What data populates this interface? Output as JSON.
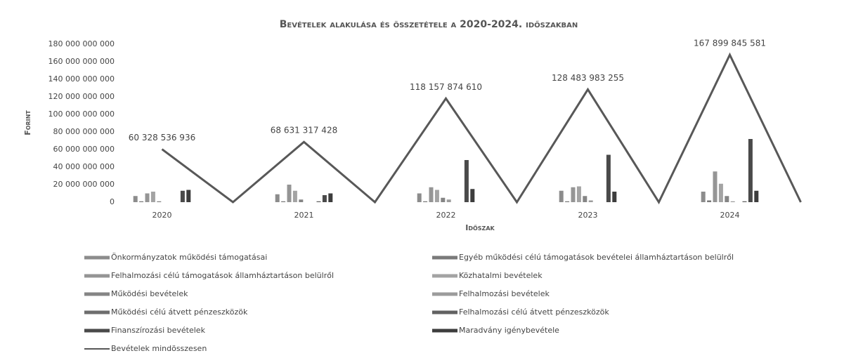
{
  "chart_data": {
    "type": "bar_line",
    "title": "Bevételek alakulása és összetétele a 2020-2024. időszakban",
    "y_label": "Forint",
    "x_label": "Időszak",
    "categories": [
      "2020",
      null,
      "2021",
      null,
      "2022",
      null,
      "2023",
      null,
      "2024",
      null
    ],
    "ylim": [
      0,
      180000000000
    ],
    "yticks": [
      0,
      {
        "value": 20000000000,
        "label": "20 000 000 000"
      },
      {
        "value": 40000000000,
        "label": "40 000 000 000"
      },
      {
        "value": 60000000000,
        "label": "60 000 000 000"
      },
      {
        "value": 80000000000,
        "label": "80 000 000 000"
      },
      {
        "value": 100000000000,
        "label": "100 000 000 000"
      },
      {
        "value": 120000000000,
        "label": "120 000 000 000"
      },
      {
        "value": 140000000000,
        "label": "140 000 000 000"
      },
      {
        "value": 160000000000,
        "label": "160 000 000 000"
      },
      {
        "value": 180000000000,
        "label": "180 000 000 000"
      }
    ],
    "grid": false,
    "legend": "bottom",
    "series": [
      {
        "name": "Önkormányzatok működési támogatásai",
        "color": "#8c8c8c",
        "values": [
          7000000000,
          null,
          9000000000,
          null,
          10000000000,
          null,
          13000000000,
          null,
          12000000000,
          null
        ]
      },
      {
        "name": "Egyéb működési célú támogatások bevételei államháztartáson belülről",
        "color": "#7a7a7a",
        "values": [
          1000000000,
          null,
          1000000000,
          null,
          1000000000,
          null,
          1000000000,
          null,
          2000000000,
          null
        ]
      },
      {
        "name": "Felhalmozási célú támogatások államháztartáson belülről",
        "color": "#959595",
        "values": [
          10000000000,
          null,
          20000000000,
          null,
          17000000000,
          null,
          17000000000,
          null,
          35000000000,
          null
        ]
      },
      {
        "name": "Közhatalmi bevételek",
        "color": "#a3a3a3",
        "values": [
          12000000000,
          null,
          13000000000,
          null,
          14000000000,
          null,
          18000000000,
          null,
          21000000000,
          null
        ]
      },
      {
        "name": "Működési bevételek",
        "color": "#858585",
        "values": [
          1000000000,
          null,
          3000000000,
          null,
          5000000000,
          null,
          7000000000,
          null,
          7000000000,
          null
        ]
      },
      {
        "name": "Felhalmozási bevételek",
        "color": "#9c9c9c",
        "values": [
          0,
          null,
          0,
          null,
          3000000000,
          null,
          2000000000,
          null,
          1000000000,
          null
        ]
      },
      {
        "name": "Működési célú átvett pénzeszközök",
        "color": "#6e6e6e",
        "values": [
          0,
          null,
          0,
          null,
          0,
          null,
          0,
          null,
          0,
          null
        ]
      },
      {
        "name": "Felhalmozási célú átvett pénzeszközök",
        "color": "#626262",
        "values": [
          0,
          null,
          1000000000,
          null,
          0,
          null,
          0,
          null,
          1000000000,
          null
        ]
      },
      {
        "name": "Finanszírozási bevételek",
        "color": "#4a4a4a",
        "values": [
          13000000000,
          null,
          8000000000,
          null,
          48000000000,
          null,
          54000000000,
          null,
          72000000000,
          null
        ]
      },
      {
        "name": "Maradvány igénybevétele",
        "color": "#3d3d3d",
        "values": [
          14000000000,
          null,
          10000000000,
          null,
          15000000000,
          null,
          12000000000,
          null,
          13000000000,
          null
        ]
      },
      {
        "name": "Bevételek mindösszesen",
        "type": "line",
        "color": "#585858",
        "values": [
          60328536936,
          0,
          68631317428,
          0,
          118157874610,
          0,
          128483983255,
          0,
          167899845581,
          0
        ],
        "value_labels": [
          "60 328 536 936",
          null,
          "68 631 317 428",
          null,
          "118 157 874 610",
          null,
          "128 483 983 255",
          null,
          "167 899 845 581",
          null
        ]
      }
    ]
  }
}
